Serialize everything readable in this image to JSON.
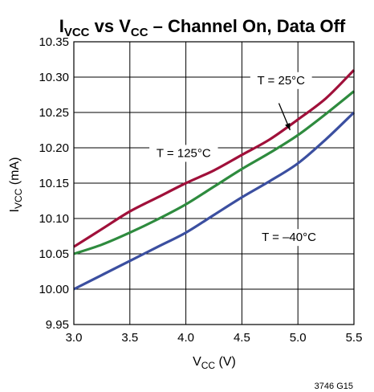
{
  "chart_data": {
    "type": "line",
    "title": {
      "main": "I",
      "sub1": "VCC",
      "mid": " vs V",
      "sub2": "CC",
      "rest": " – Channel On, Data Off"
    },
    "xlabel": {
      "main": "V",
      "sub": "CC",
      "rest": " (V)"
    },
    "ylabel": {
      "main": "I",
      "sub": "VCC",
      "rest": " (mA)"
    },
    "xlim": [
      3.0,
      5.5
    ],
    "ylim": [
      9.95,
      10.35
    ],
    "x_ticks": [
      "3.0",
      "3.5",
      "4.0",
      "4.5",
      "5.0",
      "5.5"
    ],
    "y_ticks": [
      "9.95",
      "10.00",
      "10.05",
      "10.10",
      "10.15",
      "10.20",
      "10.25",
      "10.30",
      "10.35"
    ],
    "grid": true,
    "series": [
      {
        "name": "T = 125°C",
        "color": "#a0103a",
        "x": [
          3.0,
          3.25,
          3.5,
          3.75,
          4.0,
          4.25,
          4.5,
          4.75,
          5.0,
          5.25,
          5.5
        ],
        "y": [
          10.06,
          10.085,
          10.11,
          10.13,
          10.15,
          10.168,
          10.19,
          10.212,
          10.24,
          10.27,
          10.31
        ]
      },
      {
        "name": "T = 25°C",
        "color": "#2e8b3e",
        "x": [
          3.0,
          3.25,
          3.5,
          3.75,
          4.0,
          4.25,
          4.5,
          4.75,
          5.0,
          5.25,
          5.5
        ],
        "y": [
          10.05,
          10.063,
          10.08,
          10.099,
          10.12,
          10.145,
          10.17,
          10.193,
          10.218,
          10.248,
          10.28
        ]
      },
      {
        "name": "T = –40°C",
        "color": "#3b4fa0",
        "x": [
          3.0,
          3.25,
          3.5,
          3.75,
          4.0,
          4.25,
          4.5,
          4.75,
          5.0,
          5.25,
          5.5
        ],
        "y": [
          10.0,
          10.02,
          10.04,
          10.06,
          10.08,
          10.105,
          10.13,
          10.153,
          10.178,
          10.212,
          10.25
        ]
      }
    ],
    "annotations": [
      {
        "text": "T = 25°C",
        "series": "T = 25°C"
      },
      {
        "text": "T = 125°C",
        "series": "T = 125°C"
      },
      {
        "text": "T = –40°C",
        "series": "T = –40°C"
      }
    ],
    "figure_id": "3746 G15"
  }
}
